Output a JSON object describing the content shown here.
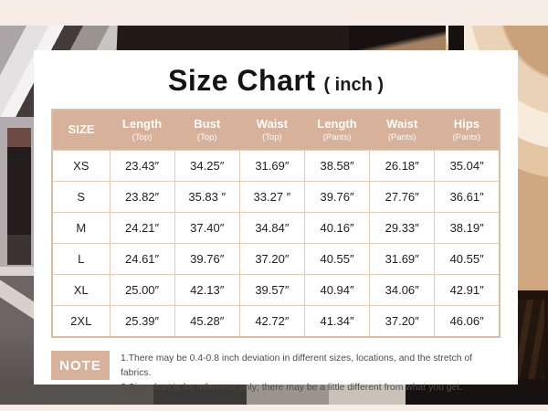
{
  "title": {
    "main": "Size Chart",
    "unit": "( inch )"
  },
  "table": {
    "header": [
      {
        "label": "SIZE",
        "sub": ""
      },
      {
        "label": "Length",
        "sub": "(Top)"
      },
      {
        "label": "Bust",
        "sub": "(Top)"
      },
      {
        "label": "Waist",
        "sub": "(Top)"
      },
      {
        "label": "Length",
        "sub": "(Pants)"
      },
      {
        "label": "Waist",
        "sub": "(Pants)"
      },
      {
        "label": "Hips",
        "sub": "(Pants)"
      }
    ],
    "rows": [
      {
        "size": "XS",
        "values": [
          "23.43″",
          "34.25″",
          "31.69″",
          "38.58″",
          "26.18″",
          "35.04″"
        ]
      },
      {
        "size": "S",
        "values": [
          "23.82″",
          "35.83 ″",
          "33.27 ″",
          "39.76″",
          "27.76″",
          "36.61″"
        ]
      },
      {
        "size": "M",
        "values": [
          "24.21″",
          "37.40″",
          "34.84″",
          "40.16″",
          "29.33″",
          "38.19″"
        ]
      },
      {
        "size": "L",
        "values": [
          "24.61″",
          "39.76″",
          "37.20″",
          "40.55″",
          "31.69″",
          "40.55″"
        ]
      },
      {
        "size": "XL",
        "values": [
          "25.00″",
          "42.13″",
          "39.57″",
          "40.94″",
          "34.06″",
          "42.91″"
        ]
      },
      {
        "size": "2XL",
        "values": [
          "25.39″",
          "45.28″",
          "42.72″",
          "41.34″",
          "37.20″",
          "46.06″"
        ]
      }
    ]
  },
  "note": {
    "label": "NOTE",
    "lines": [
      "1.There may be 0.4-0.8 inch deviation in different sizes, locations, and the stretch of fabrics.",
      "2.Size chart is for reference only; there may be a little different from what you get."
    ]
  },
  "colors": {
    "accent_tan": "#d7b199",
    "table_border": "#e3cbb5",
    "card_background": "#ffffff",
    "page_band": "#f8ece6",
    "title_text": "#141414",
    "note_text": "#4d4d4d"
  },
  "chart_data": {
    "type": "table",
    "title": "Size Chart ( inch )",
    "columns": [
      "SIZE",
      "Length (Top)",
      "Bust (Top)",
      "Waist (Top)",
      "Length (Pants)",
      "Waist (Pants)",
      "Hips (Pants)"
    ],
    "rows": [
      [
        "XS",
        23.43,
        34.25,
        31.69,
        38.58,
        26.18,
        35.04
      ],
      [
        "S",
        23.82,
        35.83,
        33.27,
        39.76,
        27.76,
        36.61
      ],
      [
        "M",
        24.21,
        37.4,
        34.84,
        40.16,
        29.33,
        38.19
      ],
      [
        "L",
        24.61,
        39.76,
        37.2,
        40.55,
        31.69,
        40.55
      ],
      [
        "XL",
        25.0,
        42.13,
        39.57,
        40.94,
        34.06,
        42.91
      ],
      [
        "2XL",
        25.39,
        45.28,
        42.72,
        41.34,
        37.2,
        46.06
      ]
    ],
    "unit": "inch",
    "notes": [
      "1.There may be 0.4-0.8 inch deviation in different sizes, locations, and the stretch of fabrics.",
      "2.Size chart is for reference only; there may be a little different from what you get."
    ]
  }
}
